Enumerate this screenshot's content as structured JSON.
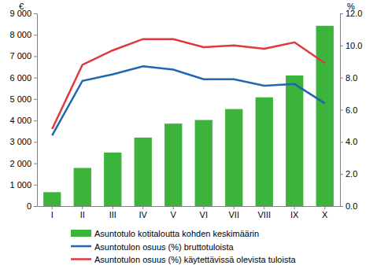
{
  "chart_data": {
    "type": "bar",
    "categories": [
      "I",
      "II",
      "III",
      "IV",
      "V",
      "VI",
      "VII",
      "VIII",
      "IX",
      "X"
    ],
    "series": [
      {
        "name": "Asuntotulo kotitaloutta kohden keskimäärin",
        "type": "bar",
        "color": "#3cb43c",
        "values": [
          650,
          1780,
          2500,
          3200,
          3850,
          4020,
          4530,
          5080,
          6100,
          8420
        ]
      },
      {
        "name": "Asuntotulon osuus (%) bruttotuloista",
        "type": "line",
        "color": "#1f67b3",
        "axis": "y2",
        "values": [
          4.4,
          7.8,
          8.2,
          8.7,
          8.5,
          7.9,
          7.9,
          7.5,
          7.6,
          6.4
        ]
      },
      {
        "name": "Asuntotulon osuus (%) käytettävissä olevista tuloista",
        "type": "line",
        "color": "#e0383e",
        "axis": "y2",
        "values": [
          4.8,
          8.8,
          9.7,
          10.4,
          10.4,
          9.9,
          10.0,
          9.8,
          10.2,
          8.9
        ]
      }
    ],
    "ylabel": "€",
    "y2label": "%",
    "ylim": [
      0,
      9000
    ],
    "yticks": [
      0,
      {
        "value": 1000,
        "label": "1 000"
      },
      {
        "value": 2000,
        "label": "2 000"
      },
      {
        "value": 3000,
        "label": "3 000"
      },
      {
        "value": 4000,
        "label": "4 000"
      },
      {
        "value": 5000,
        "label": "5 000"
      },
      {
        "value": 6000,
        "label": "6 000"
      },
      {
        "value": 7000,
        "label": "7 000"
      },
      {
        "value": 8000,
        "label": "8 000"
      },
      {
        "value": 9000,
        "label": "9 000"
      }
    ],
    "y2lim": [
      0,
      12
    ],
    "y2ticks": [
      {
        "value": 0,
        "label": "0.0"
      },
      {
        "value": 2,
        "label": "2.0"
      },
      {
        "value": 4,
        "label": "4.0"
      },
      {
        "value": 6,
        "label": "6.0"
      },
      {
        "value": 8,
        "label": "8.0"
      },
      {
        "value": 10,
        "label": "10.0"
      },
      {
        "value": 12,
        "label": "12.0"
      }
    ],
    "legend": "bottom"
  }
}
